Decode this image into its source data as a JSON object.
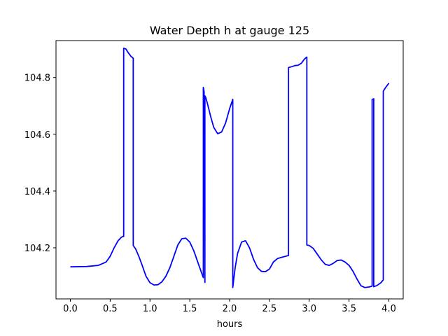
{
  "chart_data": {
    "type": "line",
    "title": "Water Depth h at gauge 125",
    "xlabel": "hours",
    "ylabel": "",
    "xlim": [
      -0.18,
      4.18
    ],
    "ylim": [
      104.02,
      104.93
    ],
    "xticks": [
      0.0,
      0.5,
      1.0,
      1.5,
      2.0,
      2.5,
      3.0,
      3.5,
      4.0
    ],
    "xtick_labels": [
      "0.0",
      "0.5",
      "1.0",
      "1.5",
      "2.0",
      "2.5",
      "3.0",
      "3.5",
      "4.0"
    ],
    "yticks": [
      104.2,
      104.4,
      104.6,
      104.8
    ],
    "ytick_labels": [
      "104.2",
      "104.4",
      "104.6",
      "104.8"
    ],
    "grid": false,
    "colors": {
      "series": "#0000ff",
      "axes": "#000000"
    },
    "series": [
      {
        "x": [
          0.0,
          0.2,
          0.35,
          0.45,
          0.5,
          0.55,
          0.6,
          0.64,
          0.66,
          0.67,
          0.67,
          0.7,
          0.72,
          0.76,
          0.79,
          0.79,
          0.82,
          0.86,
          0.9,
          0.95,
          1.0,
          1.05,
          1.1,
          1.15,
          1.2,
          1.25,
          1.3,
          1.35,
          1.4,
          1.45,
          1.5,
          1.55,
          1.6,
          1.65,
          1.67,
          1.67,
          1.68,
          1.69,
          1.69,
          1.7,
          1.72,
          1.76,
          1.8,
          1.85,
          1.9,
          1.95,
          2.0,
          2.04,
          2.04,
          2.05,
          2.07,
          2.1,
          2.15,
          2.2,
          2.25,
          2.3,
          2.35,
          2.4,
          2.45,
          2.5,
          2.55,
          2.6,
          2.65,
          2.7,
          2.74,
          2.74,
          2.78,
          2.82,
          2.86,
          2.9,
          2.94,
          2.97,
          2.97,
          3.0,
          3.05,
          3.1,
          3.15,
          3.2,
          3.25,
          3.3,
          3.35,
          3.4,
          3.45,
          3.5,
          3.55,
          3.6,
          3.65,
          3.7,
          3.75,
          3.79,
          3.79,
          3.81,
          3.81,
          3.85,
          3.9,
          3.93,
          3.93,
          3.96,
          4.0
        ],
        "y": [
          104.133,
          104.134,
          104.138,
          104.15,
          104.17,
          104.2,
          104.225,
          104.237,
          104.24,
          104.24,
          104.903,
          104.9,
          104.89,
          104.875,
          104.868,
          104.208,
          104.196,
          104.17,
          104.14,
          104.1,
          104.077,
          104.069,
          104.07,
          104.08,
          104.1,
          104.13,
          104.17,
          104.21,
          104.232,
          104.234,
          104.22,
          104.19,
          104.15,
          104.11,
          104.095,
          104.765,
          104.75,
          104.078,
          104.735,
          104.73,
          104.71,
          104.665,
          104.625,
          104.602,
          104.608,
          104.64,
          104.69,
          104.723,
          104.06,
          104.085,
          104.13,
          104.18,
          104.22,
          104.225,
          104.2,
          104.16,
          104.13,
          104.117,
          104.116,
          104.125,
          104.15,
          104.162,
          104.166,
          104.17,
          104.173,
          104.835,
          104.838,
          104.842,
          104.843,
          104.85,
          104.865,
          104.872,
          104.21,
          104.208,
          104.198,
          104.178,
          104.158,
          104.142,
          104.138,
          104.145,
          104.155,
          104.157,
          104.15,
          104.138,
          104.117,
          104.09,
          104.066,
          104.06,
          104.062,
          104.065,
          104.723,
          104.725,
          104.063,
          104.067,
          104.077,
          104.087,
          104.752,
          104.765,
          104.78
        ]
      }
    ]
  }
}
